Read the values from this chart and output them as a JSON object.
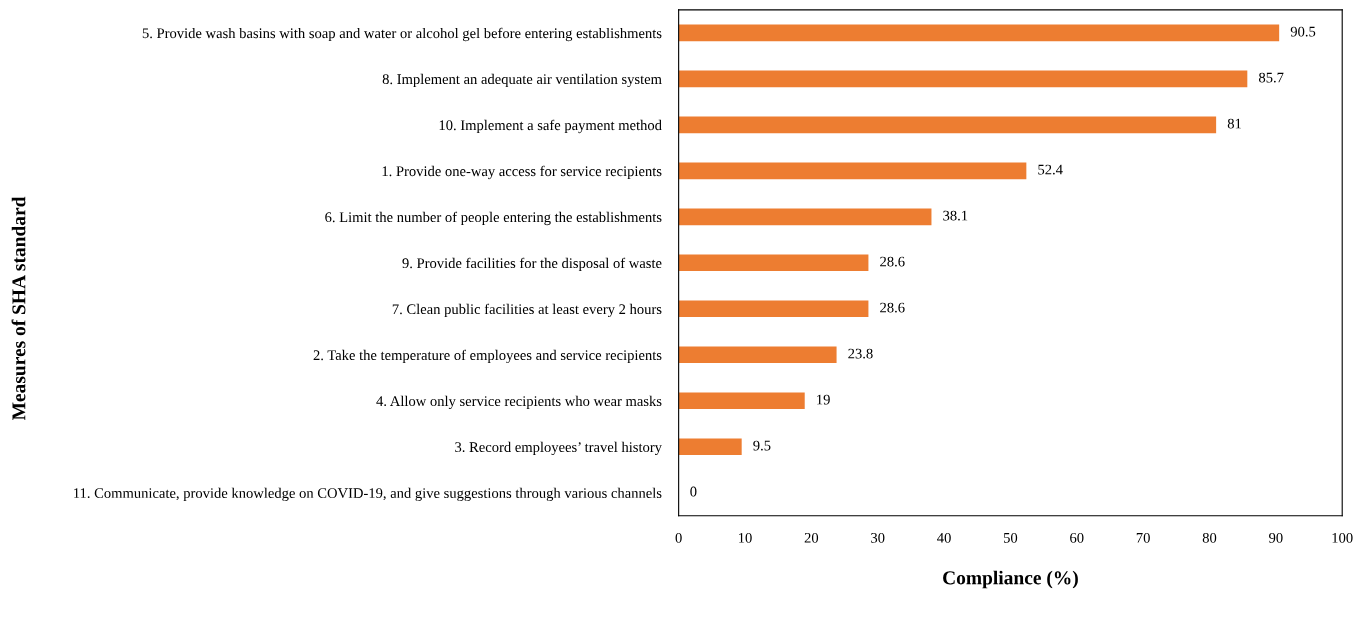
{
  "chart_data": {
    "type": "bar",
    "orientation": "horizontal",
    "xlabel": "Compliance (%)",
    "ylabel": "Measures of SHA standard",
    "categories": [
      "5. Provide wash basins with soap and water or alcohol gel before entering establishments",
      "8. Implement an adequate air ventilation system",
      "10. Implement a safe payment method",
      "1. Provide one-way access for service recipients",
      "6. Limit the number of people entering the establishments",
      "9. Provide facilities for the disposal of waste",
      "7. Clean public facilities at least every 2 hours",
      "2. Take the temperature of employees and service recipients",
      "4. Allow only service recipients who wear masks",
      "3. Record employees’ travel history",
      "11. Communicate, provide knowledge on COVID-19, and give suggestions through various channels"
    ],
    "values": [
      90.5,
      85.7,
      81,
      52.4,
      38.1,
      28.6,
      28.6,
      23.8,
      19,
      9.5,
      0
    ],
    "color": "#ed7d31",
    "data_labels": true,
    "grid": false,
    "xlim": [
      0,
      100
    ],
    "xticks": [
      0,
      10,
      20,
      30,
      40,
      50,
      60,
      70,
      80,
      90,
      100
    ]
  }
}
